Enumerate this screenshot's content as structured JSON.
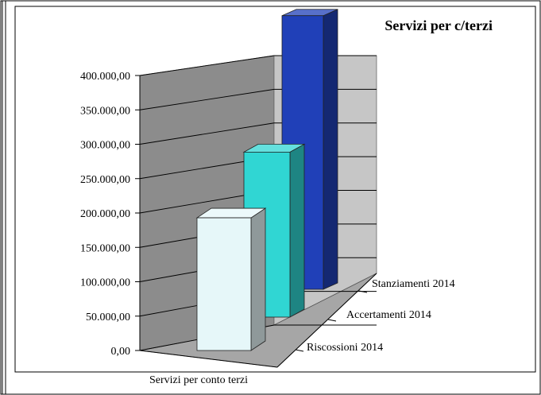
{
  "chart_data": {
    "type": "bar",
    "subtype": "3d-column-depth",
    "title": "Servizi per c/terzi",
    "categories": [
      "Servizi per conto terzi"
    ],
    "series": [
      {
        "name": "Riscossioni   2014",
        "values": [
          193000
        ],
        "color": "#e6f7f9"
      },
      {
        "name": "Accertamenti 2014",
        "values": [
          240000
        ],
        "color": "#30d6d3"
      },
      {
        "name": "Stanziamenti 2014",
        "values": [
          398000
        ],
        "color": "#2040b8"
      }
    ],
    "y_ticks": [
      "0,00",
      "50.000,00",
      "100.000,00",
      "150.000,00",
      "200.000,00",
      "250.000,00",
      "300.000,00",
      "350.000,00",
      "400.000,00"
    ],
    "ylim": [
      0,
      400000
    ],
    "grid": true,
    "legend": "depth-axis"
  }
}
